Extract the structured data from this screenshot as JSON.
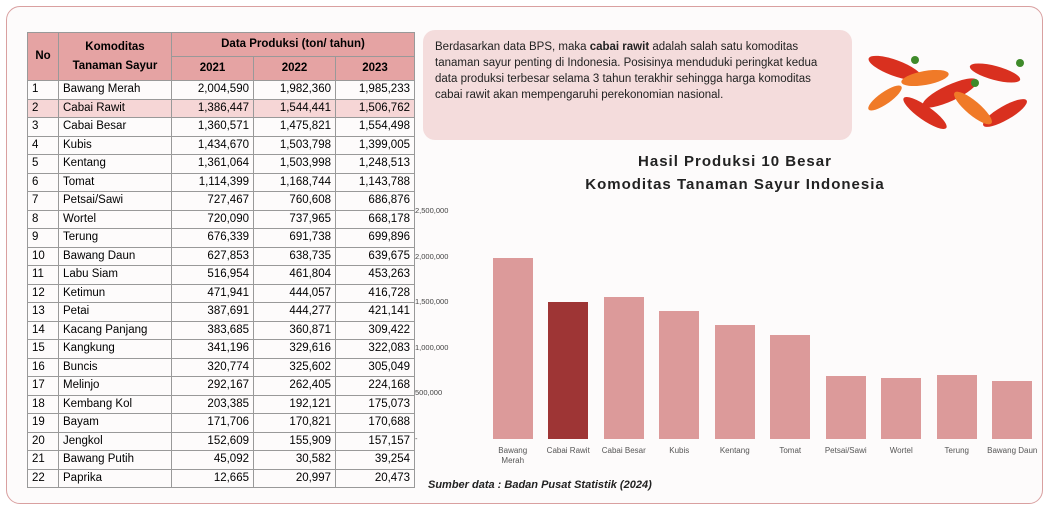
{
  "table": {
    "header": {
      "no": "No",
      "commodity": "Komoditas Tanaman Sayur",
      "group": "Data Produksi (ton/ tahun)",
      "years": [
        "2021",
        "2022",
        "2023"
      ]
    },
    "rows": [
      [
        "1",
        "Bawang Merah",
        "2,004,590",
        "1,982,360",
        "1,985,233"
      ],
      [
        "2",
        "Cabai Rawit",
        "1,386,447",
        "1,544,441",
        "1,506,762"
      ],
      [
        "3",
        "Cabai Besar",
        "1,360,571",
        "1,475,821",
        "1,554,498"
      ],
      [
        "4",
        "Kubis",
        "1,434,670",
        "1,503,798",
        "1,399,005"
      ],
      [
        "5",
        "Kentang",
        "1,361,064",
        "1,503,998",
        "1,248,513"
      ],
      [
        "6",
        "Tomat",
        "1,114,399",
        "1,168,744",
        "1,143,788"
      ],
      [
        "7",
        "Petsai/Sawi",
        "727,467",
        "760,608",
        "686,876"
      ],
      [
        "8",
        "Wortel",
        "720,090",
        "737,965",
        "668,178"
      ],
      [
        "9",
        "Terung",
        "676,339",
        "691,738",
        "699,896"
      ],
      [
        "10",
        "Bawang Daun",
        "627,853",
        "638,735",
        "639,675"
      ],
      [
        "11",
        "Labu Siam",
        "516,954",
        "461,804",
        "453,263"
      ],
      [
        "12",
        "Ketimun",
        "471,941",
        "444,057",
        "416,728"
      ],
      [
        "13",
        "Petai",
        "387,691",
        "444,277",
        "421,141"
      ],
      [
        "14",
        "Kacang Panjang",
        "383,685",
        "360,871",
        "309,422"
      ],
      [
        "15",
        "Kangkung",
        "341,196",
        "329,616",
        "322,083"
      ],
      [
        "16",
        "Buncis",
        "320,774",
        "325,602",
        "305,049"
      ],
      [
        "17",
        "Melinjo",
        "292,167",
        "262,405",
        "224,168"
      ],
      [
        "18",
        "Kembang Kol",
        "203,385",
        "192,121",
        "175,073"
      ],
      [
        "19",
        "Bayam",
        "171,706",
        "170,821",
        "170,688"
      ],
      [
        "20",
        "Jengkol",
        "152,609",
        "155,909",
        "157,157"
      ],
      [
        "21",
        "Bawang Putih",
        "45,092",
        "30,582",
        "39,254"
      ],
      [
        "22",
        "Paprika",
        "12,665",
        "20,997",
        "20,473"
      ]
    ]
  },
  "text": {
    "before": "Berdasarkan data BPS, maka ",
    "bold": "cabai rawit",
    "after": " adalah salah satu komoditas tanaman sayur penting di Indonesia. Posisinya menduduki peringkat kedua data produksi terbesar selama 3 tahun terakhir sehingga harga komoditas cabai rawit akan mempengaruhi perekonomian nasional."
  },
  "chart_data": {
    "type": "bar",
    "title_lines": [
      "Hasil Produksi 10 Besar",
      "Komoditas Tanaman Sayur Indonesia"
    ],
    "categories": [
      "Bawang Merah",
      "Cabai Rawit",
      "Cabai Besar",
      "Kubis",
      "Kentang",
      "Tomat",
      "Petsai/Sawi",
      "Wortel",
      "Terung",
      "Bawang Daun"
    ],
    "values": [
      1985233,
      1506762,
      1554498,
      1399005,
      1248513,
      1143788,
      686876,
      668178,
      699896,
      639675
    ],
    "colors": [
      "#dc9a9a",
      "#9e3535",
      "#dc9a9a",
      "#dc9a9a",
      "#dc9a9a",
      "#dc9a9a",
      "#dc9a9a",
      "#dc9a9a",
      "#dc9a9a",
      "#dc9a9a"
    ],
    "ylim": [
      0,
      2500000
    ],
    "yticks": [
      {
        "value": 0,
        "label": "-"
      },
      {
        "value": 500000,
        "label": "500,000"
      },
      {
        "value": 1000000,
        "label": "1,000,000"
      },
      {
        "value": 1500000,
        "label": "1,500,000"
      },
      {
        "value": 2000000,
        "label": "2,000,000"
      },
      {
        "value": 2500000,
        "label": "2,500,000"
      }
    ],
    "grid": false
  },
  "source": "Sumber data : Badan Pusat Statistik (2024)"
}
